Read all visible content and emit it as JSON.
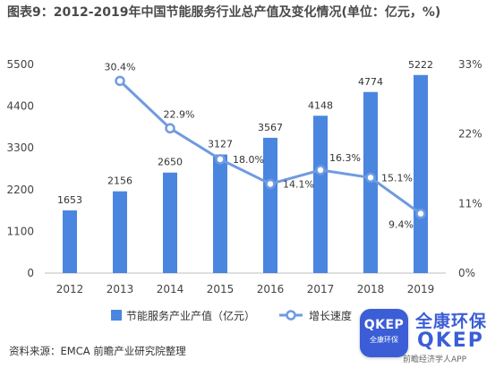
{
  "title": "图表9：2012-2019年中国节能服务行业总产值及变化情况(单位：亿元，%)",
  "source": "资料来源：EMCA 前瞻产业研究院整理",
  "logo": {
    "badge_main": "QKEP",
    "badge_sub": "全康环保",
    "brand_cn": "全康环保",
    "brand_en": "QKEP",
    "brand_sub": "前瞻经济学人APP"
  },
  "colors": {
    "bar": "#4a86e0",
    "line": "#6f9be0",
    "axis_text": "#444444",
    "grid": "#d9d9d9"
  },
  "chart_data": {
    "type": "bar",
    "categories": [
      "2012",
      "2013",
      "2014",
      "2015",
      "2016",
      "2017",
      "2018",
      "2019"
    ],
    "series": [
      {
        "name": "节能服务产业产值（亿元）",
        "type": "bar",
        "axis": "left",
        "values": [
          1653,
          2156,
          2650,
          3127,
          3567,
          4148,
          4774,
          5222
        ],
        "labels": [
          "1653",
          "2156",
          "2650",
          "3127",
          "3567",
          "4148",
          "4774",
          "5222"
        ]
      },
      {
        "name": "增长速度",
        "type": "line",
        "axis": "right",
        "values": [
          null,
          30.4,
          22.9,
          18.0,
          14.1,
          16.3,
          15.1,
          9.4
        ],
        "labels": [
          "",
          "30.4%",
          "22.9%",
          "18.0%",
          "14.1%",
          "16.3%",
          "15.1%",
          "9.4%"
        ]
      }
    ],
    "y_left": {
      "min": 0,
      "max": 5500,
      "ticks": [
        0,
        1100,
        2200,
        3300,
        4400,
        5500
      ],
      "tick_labels": [
        "0",
        "1100",
        "2200",
        "3300",
        "4400",
        "5500"
      ]
    },
    "y_right": {
      "min": 0,
      "max": 33,
      "ticks": [
        0,
        11,
        22,
        33
      ],
      "tick_labels": [
        "0%",
        "11%",
        "22%",
        "33%"
      ]
    },
    "grid": false,
    "legend": "bottom-center"
  }
}
